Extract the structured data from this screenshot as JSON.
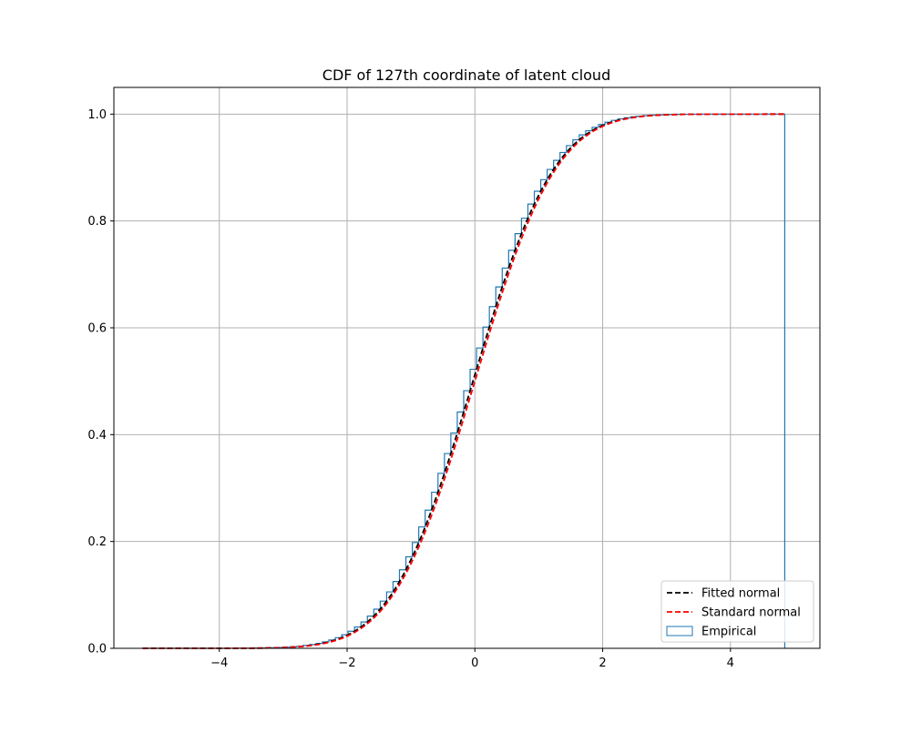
{
  "chart_data": {
    "type": "line",
    "title": "CDF of 127th coordinate of latent cloud",
    "xlabel": "",
    "ylabel": "",
    "xlim": [
      -5.65,
      5.4
    ],
    "ylim": [
      0.0,
      1.05
    ],
    "x_ticks": [
      -4,
      -2,
      0,
      2,
      4
    ],
    "y_ticks": [
      0.0,
      0.2,
      0.4,
      0.6,
      0.8,
      1.0
    ],
    "x_tick_labels": [
      "−4",
      "−2",
      "0",
      "2",
      "4"
    ],
    "y_tick_labels": [
      "0.0",
      "0.2",
      "0.4",
      "0.6",
      "0.8",
      "1.0"
    ],
    "grid": true,
    "legend_position": "lower-right",
    "legend": [
      "Fitted normal",
      "Standard normal",
      "Empirical"
    ],
    "series": [
      {
        "name": "Fitted normal",
        "style": "dashed",
        "color": "#000000",
        "mean": -0.03,
        "std": 1.0,
        "x_range": [
          -5.2,
          4.85
        ]
      },
      {
        "name": "Standard normal",
        "style": "dashed",
        "color": "#ff0000",
        "mean": 0.0,
        "std": 1.0,
        "x_range": [
          -5.2,
          4.85
        ]
      },
      {
        "name": "Empirical",
        "style": "step",
        "color": "#1f77b4",
        "bin_range": [
          -5.2,
          4.85
        ],
        "bins": 100,
        "mean": -0.03,
        "std": 1.0
      }
    ]
  }
}
